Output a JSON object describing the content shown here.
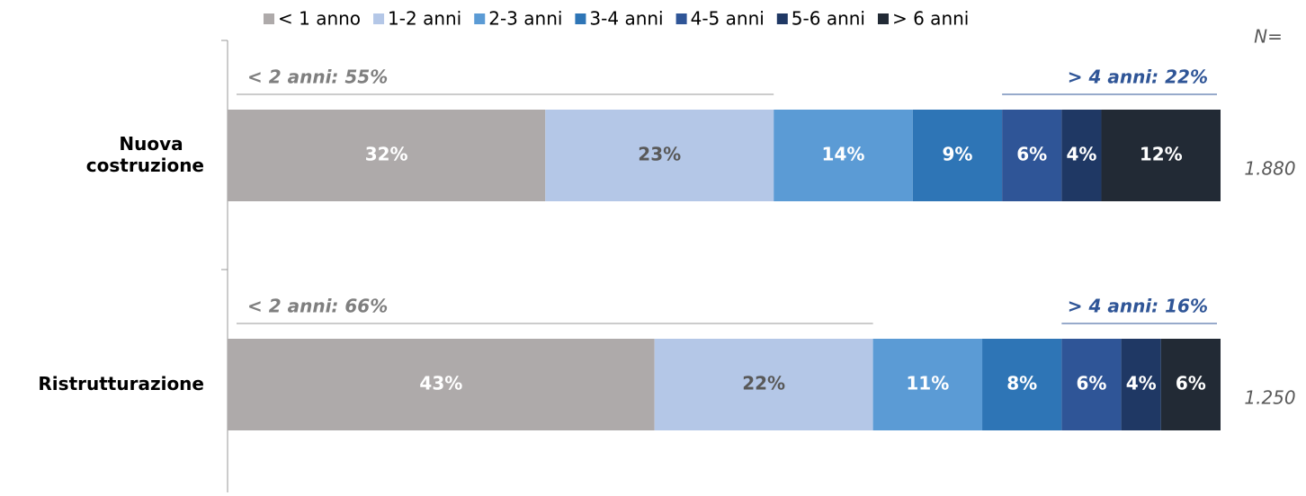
{
  "chart_data": {
    "type": "stacked-bar-horizontal",
    "categories": [
      "Nuova costruzione",
      "Ristrutturazione"
    ],
    "xlim": [
      0,
      100
    ],
    "series": [
      {
        "name": "< 1 anno",
        "color": "#aeaaaa",
        "values": [
          32,
          43
        ],
        "value_labels": [
          "32%",
          "43%"
        ]
      },
      {
        "name": "1-2 anni",
        "color": "#b4c7e7",
        "values": [
          23,
          22
        ],
        "value_labels": [
          "23%",
          "22%"
        ]
      },
      {
        "name": "2-3 anni",
        "color": "#5b9bd5",
        "values": [
          14,
          11
        ],
        "value_labels": [
          "14%",
          "11%"
        ]
      },
      {
        "name": "3-4 anni",
        "color": "#2e75b6",
        "values": [
          9,
          8
        ],
        "value_labels": [
          "9%",
          "8%"
        ]
      },
      {
        "name": "4-5 anni",
        "color": "#2f5597",
        "values": [
          6,
          6
        ],
        "value_labels": [
          "6%",
          "6%"
        ]
      },
      {
        "name": "5-6 anni",
        "color": "#1f3864",
        "values": [
          4,
          4
        ],
        "value_labels": [
          "4%",
          "4%"
        ]
      },
      {
        "name": "> 6 anni",
        "color": "#222a35",
        "values": [
          12,
          6
        ],
        "value_labels": [
          "12%",
          "6%"
        ]
      }
    ],
    "left_annotations": [
      "< 2 anni: 55%",
      "< 2 anni: 66%"
    ],
    "right_annotations": [
      "> 4 anni: 22%",
      "> 4 anni: 16%"
    ],
    "n_header": "N=",
    "n_values": [
      "1.880",
      "1.250"
    ],
    "legend": "top"
  }
}
